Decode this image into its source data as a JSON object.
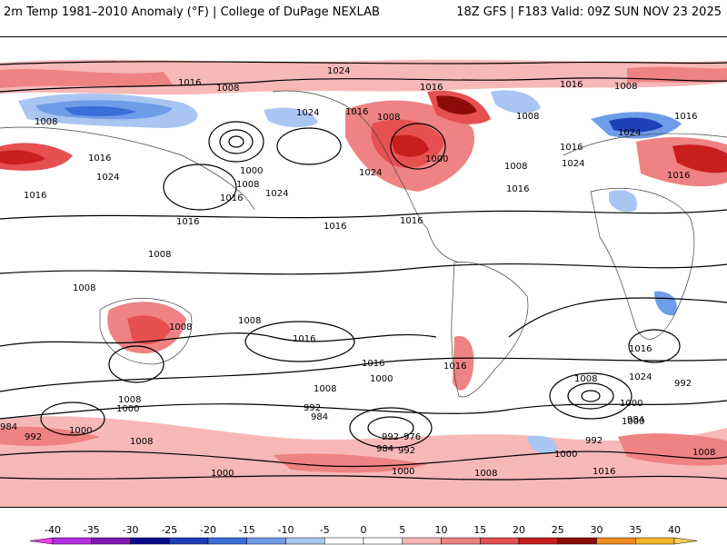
{
  "header": {
    "left_title": "2m Temp 1981–2010 Anomaly (°F) | College of DuPage NEXLAB",
    "right_title": "18Z GFS | F183 Valid: 09Z SUN NOV 23 2025"
  },
  "isobar_labels": [
    {
      "id": "p1",
      "text": "1024"
    },
    {
      "id": "p2",
      "text": "1016"
    },
    {
      "id": "p3",
      "text": "1008"
    },
    {
      "id": "p4",
      "text": "1016"
    },
    {
      "id": "p5",
      "text": "1008"
    },
    {
      "id": "p6",
      "text": "1016"
    },
    {
      "id": "p7",
      "text": "1024"
    },
    {
      "id": "p8",
      "text": "1016"
    },
    {
      "id": "p9",
      "text": "1008"
    },
    {
      "id": "p10",
      "text": "1024"
    },
    {
      "id": "p11",
      "text": "1016"
    },
    {
      "id": "p12",
      "text": "1008"
    },
    {
      "id": "p13",
      "text": "1000"
    },
    {
      "id": "p14",
      "text": "1008"
    },
    {
      "id": "p15",
      "text": "1016"
    },
    {
      "id": "p16",
      "text": "1024"
    },
    {
      "id": "p17",
      "text": "1016"
    },
    {
      "id": "p18",
      "text": "1024"
    },
    {
      "id": "p19",
      "text": "1024"
    },
    {
      "id": "p20",
      "text": "1000"
    },
    {
      "id": "p21",
      "text": "1008"
    },
    {
      "id": "p22",
      "text": "1016"
    },
    {
      "id": "p23",
      "text": "1008"
    },
    {
      "id": "p24",
      "text": "1024"
    },
    {
      "id": "p25",
      "text": "1016"
    },
    {
      "id": "p26",
      "text": "1016"
    },
    {
      "id": "p27",
      "text": "1016"
    },
    {
      "id": "p28",
      "text": "1016"
    },
    {
      "id": "p29",
      "text": "1008"
    },
    {
      "id": "p30",
      "text": "1008"
    },
    {
      "id": "p31",
      "text": "1008"
    },
    {
      "id": "p32",
      "text": "1008"
    },
    {
      "id": "p33",
      "text": "1016"
    },
    {
      "id": "p34",
      "text": "1016"
    },
    {
      "id": "p35",
      "text": "1016"
    },
    {
      "id": "p36",
      "text": "1008"
    },
    {
      "id": "p37",
      "text": "1000"
    },
    {
      "id": "p38",
      "text": "1016"
    },
    {
      "id": "p39",
      "text": "1016"
    },
    {
      "id": "p40",
      "text": "1008"
    },
    {
      "id": "p41",
      "text": "1024"
    },
    {
      "id": "p42",
      "text": "992"
    },
    {
      "id": "p43",
      "text": "1016"
    },
    {
      "id": "p44",
      "text": "1008"
    },
    {
      "id": "p45",
      "text": "1000"
    },
    {
      "id": "p46",
      "text": "992"
    },
    {
      "id": "p47",
      "text": "984"
    },
    {
      "id": "p48",
      "text": "976"
    },
    {
      "id": "p49",
      "text": "984"
    },
    {
      "id": "p50",
      "text": "992"
    },
    {
      "id": "p51",
      "text": "1000"
    },
    {
      "id": "p52",
      "text": "984"
    },
    {
      "id": "p53",
      "text": "992"
    },
    {
      "id": "p54",
      "text": "1000"
    },
    {
      "id": "p55",
      "text": "1008"
    },
    {
      "id": "p56",
      "text": "1000"
    },
    {
      "id": "p57",
      "text": "1000"
    },
    {
      "id": "p58",
      "text": "1008"
    },
    {
      "id": "p59",
      "text": "1016"
    },
    {
      "id": "p60",
      "text": "1000"
    },
    {
      "id": "p61",
      "text": "992"
    },
    {
      "id": "p62",
      "text": "1000"
    },
    {
      "id": "p63",
      "text": "984"
    },
    {
      "id": "p64",
      "text": "992"
    },
    {
      "id": "p65",
      "text": "1008"
    }
  ],
  "colorbar": {
    "ticks": [
      "-40",
      "-35",
      "-30",
      "-25",
      "-20",
      "-15",
      "-10",
      "-5",
      "0",
      "5",
      "10",
      "15",
      "20",
      "25",
      "30",
      "35",
      "40"
    ],
    "colors": [
      "#f53cf5",
      "#b42de0",
      "#7d18b4",
      "#0a0a8c",
      "#1f3fb8",
      "#3a6ed9",
      "#6f9ce8",
      "#a9c6f2",
      "#ffffff",
      "#ffffff",
      "#f7b8b8",
      "#ef8282",
      "#e65050",
      "#c81e1e",
      "#8c0a0a",
      "#f08c1e",
      "#f5b428",
      "#fad25a"
    ]
  }
}
